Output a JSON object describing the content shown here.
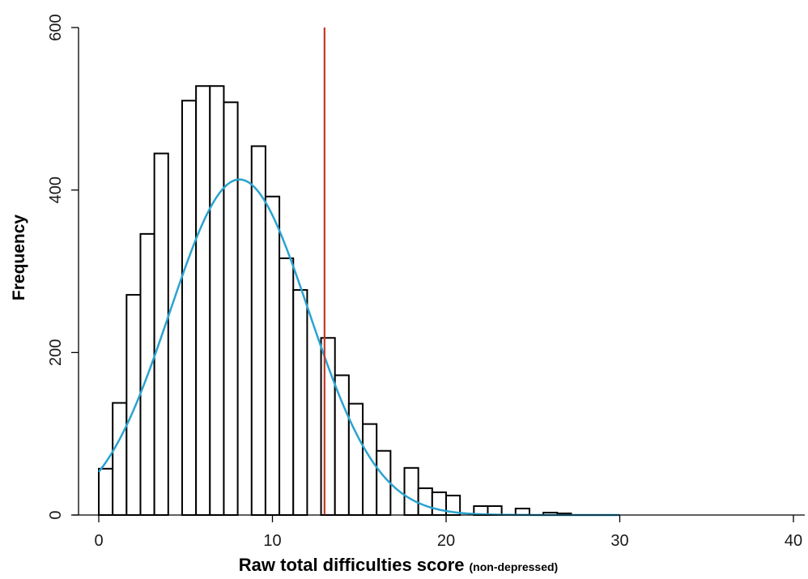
{
  "chart_data": {
    "type": "bar",
    "title": "",
    "xlabel": "Raw total difficulties score",
    "xlabel_suffix": "(non-depressed)",
    "ylabel": "Frequency",
    "xlim": [
      0,
      40
    ],
    "ylim": [
      0,
      600
    ],
    "xticks": [
      "0",
      "10",
      "20",
      "30",
      "40"
    ],
    "yticks": [
      "0",
      "200",
      "400",
      "600"
    ],
    "bin_width": 0.8,
    "bins": [
      {
        "x": 0.0,
        "value": 57
      },
      {
        "x": 0.8,
        "value": 138
      },
      {
        "x": 1.6,
        "value": 271
      },
      {
        "x": 2.4,
        "value": 346
      },
      {
        "x": 3.2,
        "value": 445
      },
      {
        "x": 4.0,
        "value": 0
      },
      {
        "x": 4.8,
        "value": 510
      },
      {
        "x": 5.6,
        "value": 528
      },
      {
        "x": 6.4,
        "value": 528
      },
      {
        "x": 7.2,
        "value": 508
      },
      {
        "x": 8.0,
        "value": 0
      },
      {
        "x": 8.8,
        "value": 454
      },
      {
        "x": 9.6,
        "value": 392
      },
      {
        "x": 10.4,
        "value": 316
      },
      {
        "x": 11.2,
        "value": 277
      },
      {
        "x": 12.0,
        "value": 0
      },
      {
        "x": 12.8,
        "value": 218
      },
      {
        "x": 13.6,
        "value": 172
      },
      {
        "x": 14.4,
        "value": 137
      },
      {
        "x": 15.2,
        "value": 112
      },
      {
        "x": 16.0,
        "value": 79
      },
      {
        "x": 16.8,
        "value": 0
      },
      {
        "x": 17.6,
        "value": 58
      },
      {
        "x": 18.4,
        "value": 33
      },
      {
        "x": 19.2,
        "value": 28
      },
      {
        "x": 20.0,
        "value": 24
      },
      {
        "x": 20.8,
        "value": 0
      },
      {
        "x": 21.6,
        "value": 11
      },
      {
        "x": 22.4,
        "value": 11
      },
      {
        "x": 23.2,
        "value": 0
      },
      {
        "x": 24.0,
        "value": 8
      },
      {
        "x": 24.8,
        "value": 0
      },
      {
        "x": 25.6,
        "value": 3
      },
      {
        "x": 26.4,
        "value": 2
      },
      {
        "x": 27.2,
        "value": 0
      }
    ],
    "normal_curve": {
      "mean": 8.1,
      "sd": 4.0,
      "peak": 413,
      "x_start": 0,
      "x_end": 30,
      "color": "#2aa3cf"
    },
    "cutoff_line": {
      "x": 13,
      "y_top": 600,
      "color": "#c0392b"
    },
    "grid": false
  }
}
